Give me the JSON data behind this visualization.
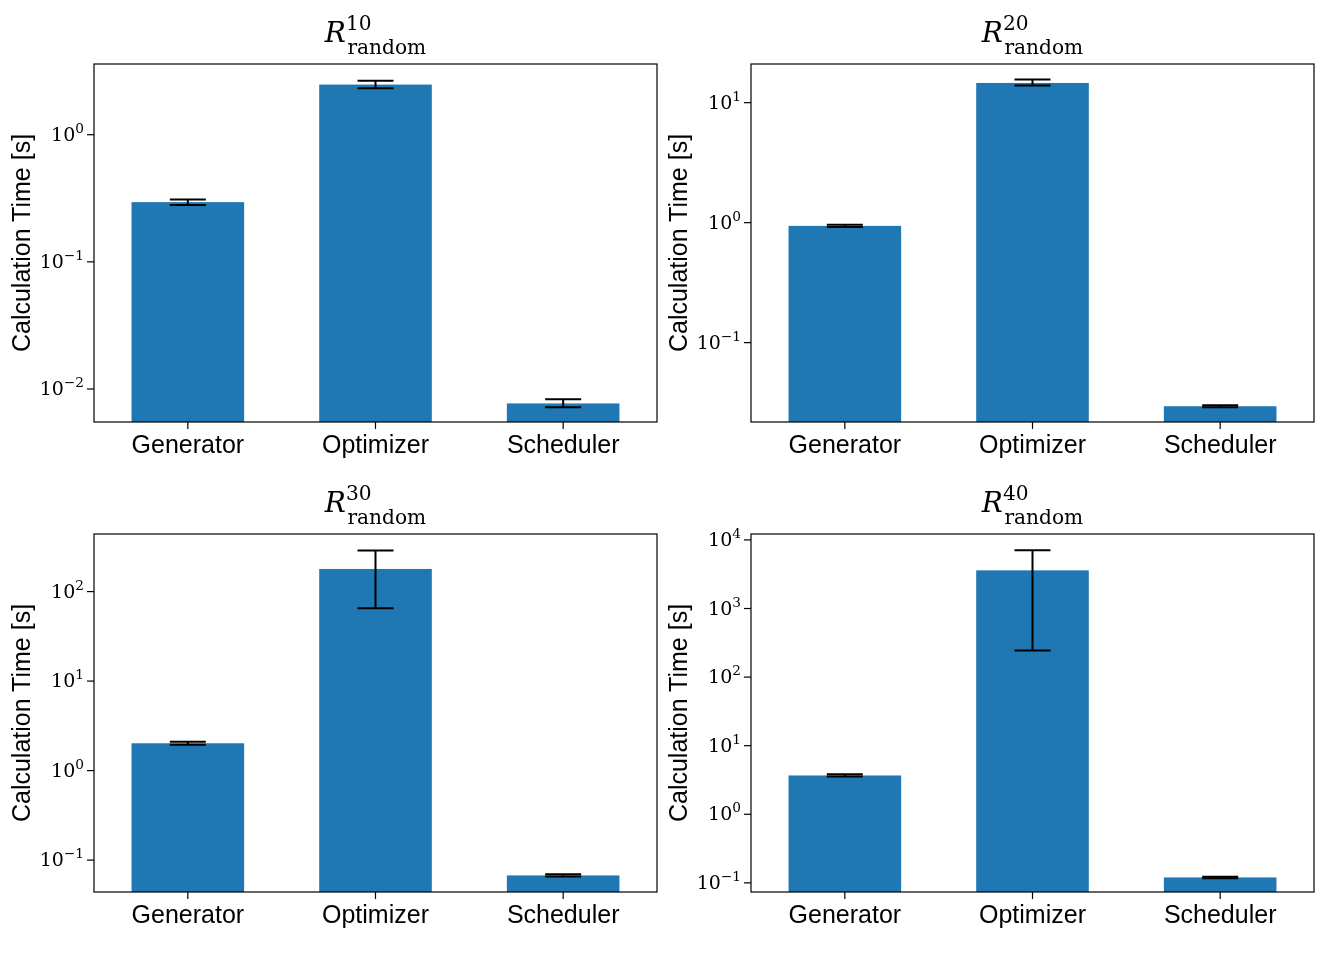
{
  "chart_data": [
    {
      "type": "bar",
      "title": "R$^{10}$$_{random}$",
      "ylabel": "Calculation Time [s]",
      "categories": [
        "Generator",
        "Optimizer",
        "Scheduler"
      ],
      "color": "#1f77b4",
      "log": true,
      "values": [
        0.295,
        2.48,
        0.0077
      ],
      "errors": [
        [
          0.28,
          0.31
        ],
        [
          2.32,
          2.66
        ],
        [
          0.0072,
          0.0083
        ]
      ],
      "ylim": [
        0.0055,
        3.6
      ],
      "yticks": [
        {
          "value": 0.01,
          "label": "10$^{−2}$"
        },
        {
          "value": 0.1,
          "label": "10$^{−1}$"
        },
        {
          "value": 1,
          "label": "10$^{0}$"
        }
      ]
    },
    {
      "type": "bar",
      "title": "R$^{20}$$_{random}$",
      "ylabel": "Calculation Time [s]",
      "categories": [
        "Generator",
        "Optimizer",
        "Scheduler"
      ],
      "color": "#1f77b4",
      "log": true,
      "values": [
        0.94,
        14.6,
        0.0295
      ],
      "errors": [
        [
          0.92,
          0.96
        ],
        [
          13.9,
          15.6
        ],
        [
          0.029,
          0.03
        ]
      ],
      "ylim": [
        0.0218,
        21
      ],
      "yticks": [
        {
          "value": 0.1,
          "label": "10$^{−1}$"
        },
        {
          "value": 1,
          "label": "10$^{0}$"
        },
        {
          "value": 10,
          "label": "10$^{1}$"
        }
      ]
    },
    {
      "type": "bar",
      "title": "R$^{30}$$_{random}$",
      "ylabel": "Calculation Time [s]",
      "categories": [
        "Generator",
        "Optimizer",
        "Scheduler"
      ],
      "color": "#1f77b4",
      "log": true,
      "values": [
        2.02,
        179,
        0.0674
      ],
      "errors": [
        [
          1.94,
          2.1
        ],
        [
          65,
          288
        ],
        [
          0.0655,
          0.0693
        ]
      ],
      "ylim": [
        0.044,
        440
      ],
      "yticks": [
        {
          "value": 0.1,
          "label": "10$^{−1}$"
        },
        {
          "value": 1,
          "label": "10$^{0}$"
        },
        {
          "value": 10,
          "label": "10$^{1}$"
        },
        {
          "value": 100,
          "label": "10$^{2}$"
        }
      ]
    },
    {
      "type": "bar",
      "title": "R$^{40}$$_{random}$",
      "ylabel": "Calculation Time [s]",
      "categories": [
        "Generator",
        "Optimizer",
        "Scheduler"
      ],
      "color": "#1f77b4",
      "log": true,
      "values": [
        3.68,
        3600,
        0.12
      ],
      "errors": [
        [
          3.55,
          3.82
        ],
        [
          245,
          7060
        ],
        [
          0.117,
          0.123
        ]
      ],
      "ylim": [
        0.0736,
        12200
      ],
      "yticks": [
        {
          "value": 0.1,
          "label": "10$^{−1}$"
        },
        {
          "value": 1,
          "label": "10$^{0}$"
        },
        {
          "value": 10,
          "label": "10$^{1}$"
        },
        {
          "value": 100,
          "label": "10$^{2}$"
        },
        {
          "value": 1000,
          "label": "10$^{3}$"
        },
        {
          "value": 10000,
          "label": "10$^{4}$"
        }
      ]
    }
  ]
}
